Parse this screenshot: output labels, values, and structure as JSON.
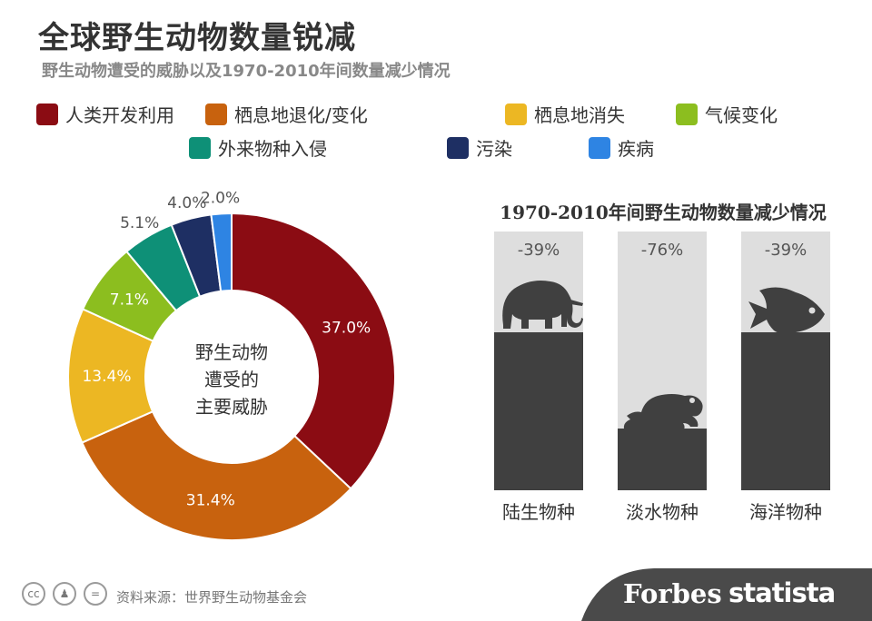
{
  "header": {
    "title": "全球野生动物数量锐减",
    "subtitle": "野生动物遭受的威胁以及1970-2010年间数量减少情况"
  },
  "chart_data": [
    {
      "type": "pie",
      "center_label": [
        "野生动物",
        "遭受的",
        "主要威胁"
      ],
      "slices": [
        {
          "name": "人类开发利用",
          "value": 37.0,
          "label": "37.0%",
          "color": "#8b0c13"
        },
        {
          "name": "栖息地退化/变化",
          "value": 31.4,
          "label": "31.4%",
          "color": "#c8620e"
        },
        {
          "name": "栖息地消失",
          "value": 13.4,
          "label": "13.4%",
          "color": "#ecb723"
        },
        {
          "name": "气候变化",
          "value": 7.1,
          "label": "7.1%",
          "color": "#8cbe1f"
        },
        {
          "name": "外来物种入侵",
          "value": 5.1,
          "label": "5.1%",
          "color": "#0e9077"
        },
        {
          "name": "污染",
          "value": 4.0,
          "label": "4.0%",
          "color": "#1e2f63"
        },
        {
          "name": "疾病",
          "value": 2.0,
          "label": "2.0%",
          "color": "#2e84e3"
        }
      ]
    },
    {
      "type": "bar",
      "title": "1970-2010年间野生动物数量减少情况",
      "categories": [
        "陆生物种",
        "淡水物种",
        "海洋物种"
      ],
      "values": [
        -39,
        -76,
        -39
      ],
      "value_labels": [
        "-39%",
        "-76%",
        "-39%"
      ],
      "icons": [
        "elephant-icon",
        "frog-icon",
        "fish-icon"
      ]
    }
  ],
  "footer": {
    "source": "资料来源：世界野生动物基金会",
    "brand_forbes": "Forbes",
    "brand_statista": "statista"
  },
  "colors": {
    "bar_fill": "#404040",
    "bar_background": "#dedede",
    "footer_band": "#4a4a4a"
  }
}
